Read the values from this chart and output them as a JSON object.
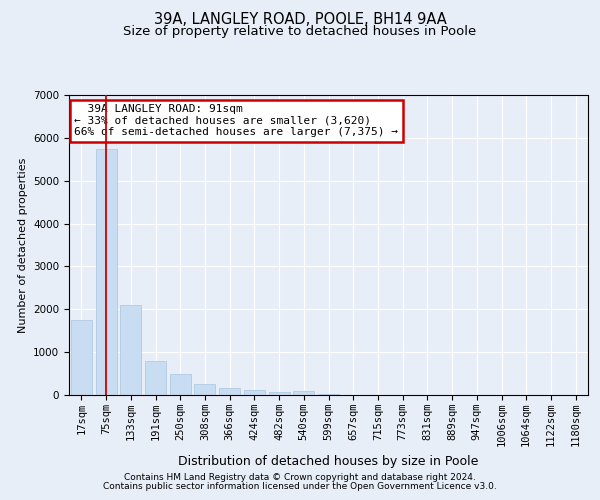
{
  "title_line1": "39A, LANGLEY ROAD, POOLE, BH14 9AA",
  "title_line2": "Size of property relative to detached houses in Poole",
  "xlabel": "Distribution of detached houses by size in Poole",
  "ylabel": "Number of detached properties",
  "bar_color": "#c9ddf2",
  "bar_edge_color": "#a8c4e0",
  "categories": [
    "17sqm",
    "75sqm",
    "133sqm",
    "191sqm",
    "250sqm",
    "308sqm",
    "366sqm",
    "424sqm",
    "482sqm",
    "540sqm",
    "599sqm",
    "657sqm",
    "715sqm",
    "773sqm",
    "831sqm",
    "889sqm",
    "947sqm",
    "1006sqm",
    "1064sqm",
    "1122sqm",
    "1180sqm"
  ],
  "values": [
    1750,
    5750,
    2100,
    800,
    490,
    260,
    170,
    110,
    80,
    95,
    30,
    5,
    2,
    1,
    0,
    0,
    0,
    0,
    0,
    0,
    0
  ],
  "ylim": [
    0,
    7000
  ],
  "yticks": [
    0,
    1000,
    2000,
    3000,
    4000,
    5000,
    6000,
    7000
  ],
  "property_line_x": 1,
  "annotation_text": "  39A LANGLEY ROAD: 91sqm\n← 33% of detached houses are smaller (3,620)\n66% of semi-detached houses are larger (7,375) →",
  "annotation_box_color": "#ffffff",
  "annotation_box_edge": "#cc0000",
  "vline_color": "#cc0000",
  "footer_line1": "Contains HM Land Registry data © Crown copyright and database right 2024.",
  "footer_line2": "Contains public sector information licensed under the Open Government Licence v3.0.",
  "background_color": "#e8eef8",
  "plot_background": "#e8eef8",
  "grid_color": "#ffffff",
  "title_fontsize": 10.5,
  "subtitle_fontsize": 9.5,
  "xlabel_fontsize": 9,
  "ylabel_fontsize": 8,
  "tick_fontsize": 7.5,
  "annotation_fontsize": 8,
  "footer_fontsize": 6.5
}
